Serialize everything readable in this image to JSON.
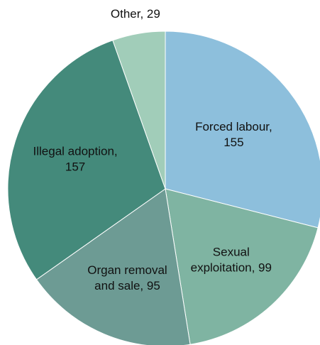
{
  "chart_data": {
    "type": "pie",
    "categories": [
      "Forced labour",
      "Sexual exploitation",
      "Organ removal and sale",
      "Illegal adoption",
      "Other"
    ],
    "values": [
      155,
      99,
      95,
      157,
      29
    ],
    "value_labels": [
      "Forced labour, 155",
      "Sexual exploitation, 99",
      "Organ removal and sale, 95",
      "Illegal adoption, 157",
      "Other, 29"
    ],
    "colors": [
      "#8dbfdc",
      "#7fb4a2",
      "#6d9b94",
      "#448a7b",
      "#a1cdb9"
    ]
  }
}
